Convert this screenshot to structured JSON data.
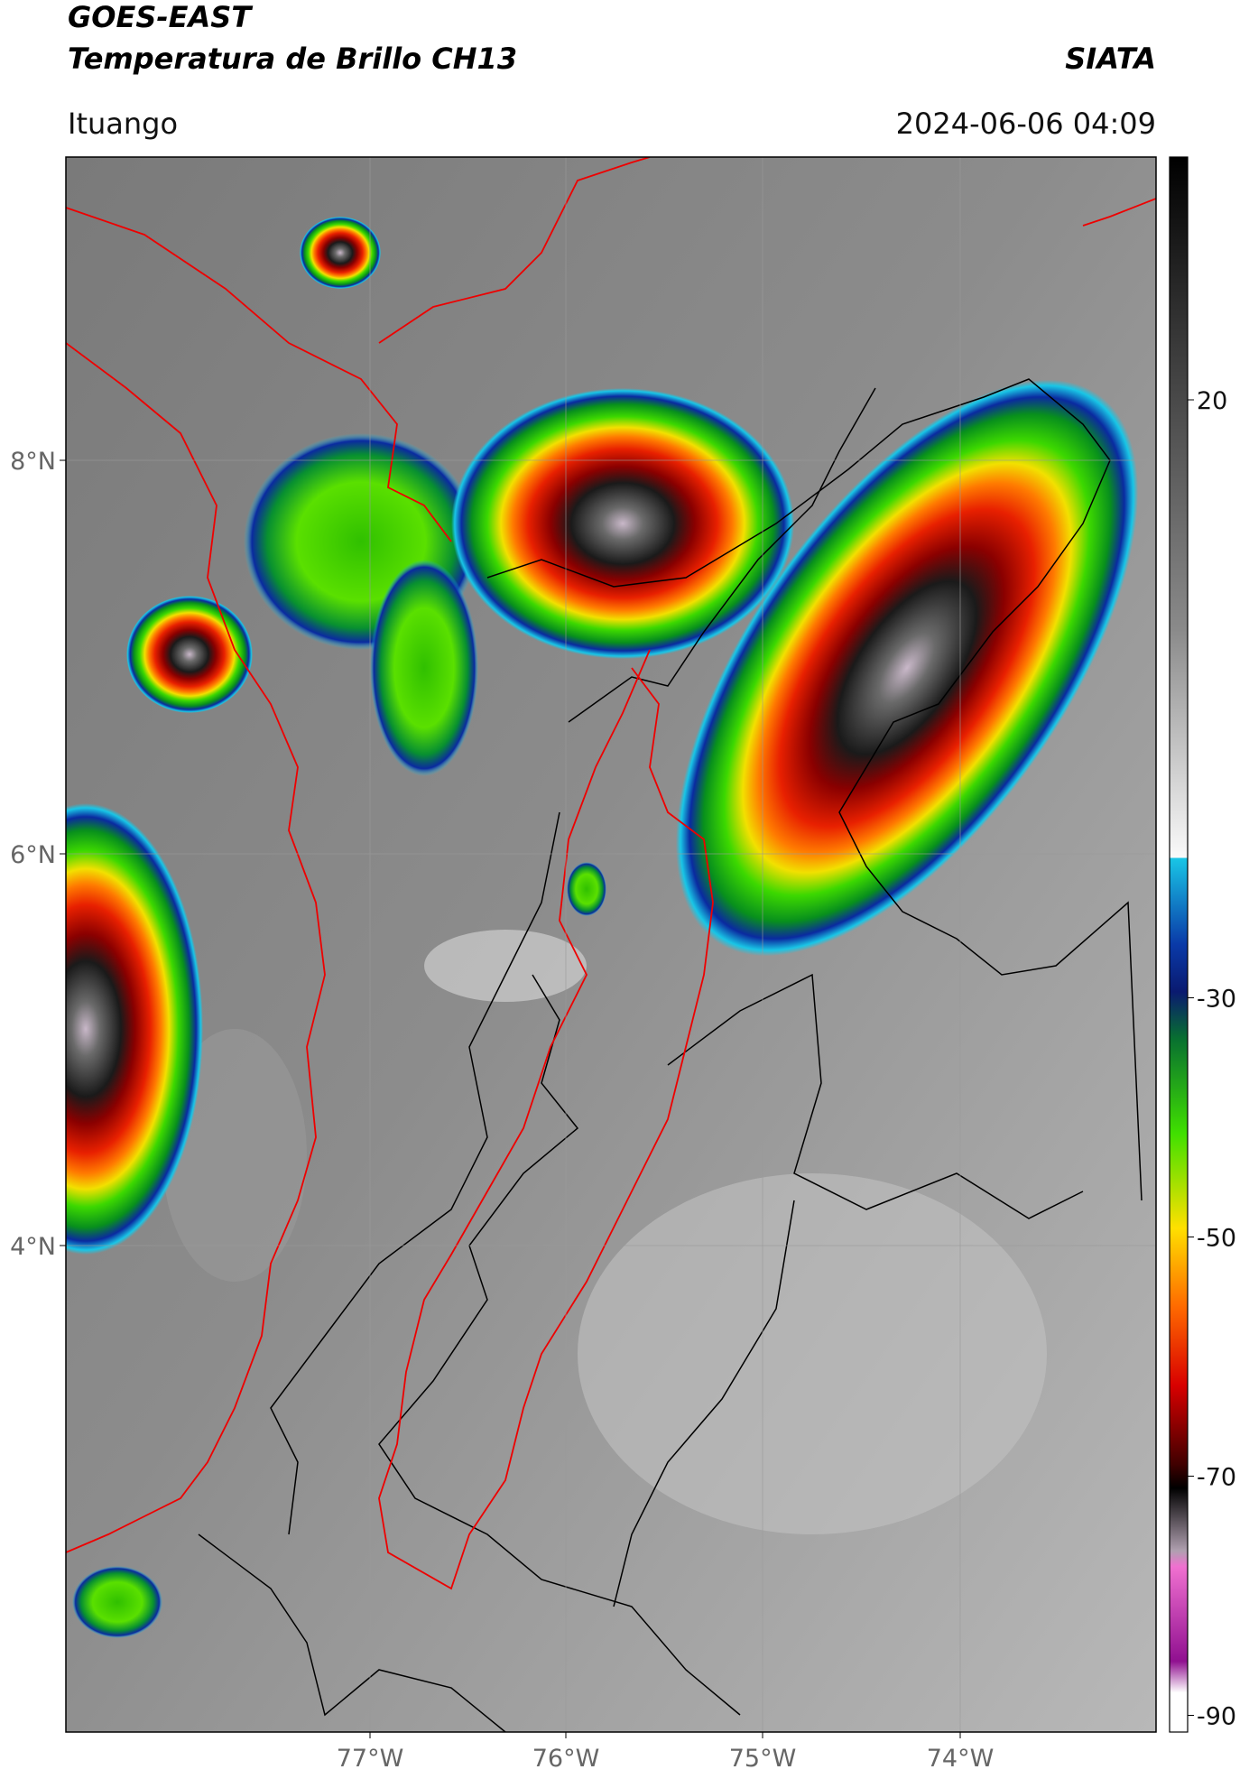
{
  "header": {
    "title": "GOES-EAST",
    "subtitle": "Temperatura de Brillo CH13",
    "organization": "SIATA",
    "location": "Ituango",
    "datetime": "2024-06-06 04:09"
  },
  "map": {
    "lat_labels": [
      "8°N",
      "6°N",
      "4°N"
    ],
    "lon_labels": [
      "77°W",
      "76°W",
      "75°W",
      "74°W"
    ]
  },
  "colorbar": {
    "ticks": [
      20,
      -30,
      -50,
      -70,
      -90
    ]
  }
}
